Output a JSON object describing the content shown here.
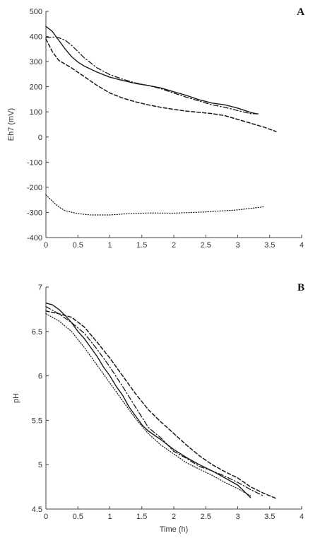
{
  "chart_data": [
    {
      "type": "line",
      "panel_label": "A",
      "xlabel": "",
      "ylabel": "Eh7 (mV)",
      "xlim": [
        0,
        4
      ],
      "ylim": [
        -400,
        500
      ],
      "xticks": [
        "0",
        "0.5",
        "1",
        "1.5",
        "2",
        "2.5",
        "3",
        "3.5",
        "4"
      ],
      "yticks": [
        "-400",
        "-300",
        "-200",
        "-100",
        "0",
        "100",
        "200",
        "300",
        "400",
        "500"
      ],
      "series": [
        {
          "style": "solid",
          "x": [
            0,
            0.1,
            0.2,
            0.3,
            0.4,
            0.5,
            0.6,
            0.8,
            1.0,
            1.2,
            1.4,
            1.6,
            1.8,
            2.0,
            2.2,
            2.4,
            2.6,
            2.8,
            3.0,
            3.2,
            3.3
          ],
          "y": [
            440,
            420,
            385,
            350,
            320,
            298,
            282,
            258,
            238,
            225,
            213,
            205,
            195,
            180,
            165,
            148,
            135,
            128,
            115,
            98,
            92
          ]
        },
        {
          "style": "dashdot",
          "x": [
            0,
            0.1,
            0.2,
            0.3,
            0.4,
            0.5,
            0.6,
            0.8,
            1.0,
            1.2,
            1.4,
            1.6,
            1.8,
            2.0,
            2.2,
            2.4,
            2.6,
            2.8,
            3.0,
            3.2,
            3.35
          ],
          "y": [
            395,
            398,
            395,
            385,
            365,
            340,
            315,
            275,
            248,
            230,
            215,
            205,
            192,
            175,
            158,
            143,
            128,
            118,
            105,
            93,
            92
          ]
        },
        {
          "style": "dashed",
          "x": [
            0,
            0.1,
            0.2,
            0.4,
            0.6,
            0.8,
            1.0,
            1.2,
            1.4,
            1.6,
            1.8,
            2.0,
            2.2,
            2.4,
            2.6,
            2.8,
            3.0,
            3.2,
            3.4,
            3.6
          ],
          "y": [
            390,
            340,
            305,
            275,
            240,
            205,
            175,
            155,
            140,
            128,
            118,
            110,
            103,
            98,
            93,
            85,
            70,
            55,
            40,
            22
          ]
        },
        {
          "style": "dotted",
          "x": [
            0,
            0.1,
            0.2,
            0.3,
            0.5,
            0.7,
            1.0,
            1.3,
            1.6,
            2.0,
            2.5,
            3.0,
            3.4
          ],
          "y": [
            -230,
            -255,
            -278,
            -293,
            -305,
            -310,
            -310,
            -305,
            -302,
            -303,
            -298,
            -290,
            -278
          ]
        }
      ]
    },
    {
      "type": "line",
      "panel_label": "B",
      "xlabel": "Time (h)",
      "ylabel": "pH",
      "xlim": [
        0,
        4
      ],
      "ylim": [
        4.5,
        7
      ],
      "xticks": [
        "0",
        "0.5",
        "1",
        "1.5",
        "2",
        "2.5",
        "3",
        "3.5",
        "4"
      ],
      "yticks": [
        "4.5",
        "5",
        "5.5",
        "6",
        "6.5",
        "7"
      ],
      "series": [
        {
          "style": "solid",
          "x": [
            0,
            0.1,
            0.2,
            0.3,
            0.4,
            0.5,
            0.6,
            0.7,
            0.8,
            0.9,
            1.0,
            1.1,
            1.2,
            1.3,
            1.4,
            1.5,
            1.6,
            1.8,
            2.0,
            2.2,
            2.4,
            2.6,
            2.8,
            3.0,
            3.2
          ],
          "y": [
            6.82,
            6.8,
            6.75,
            6.68,
            6.6,
            6.5,
            6.42,
            6.32,
            6.22,
            6.1,
            6.0,
            5.88,
            5.78,
            5.65,
            5.55,
            5.45,
            5.38,
            5.28,
            5.17,
            5.08,
            5.0,
            4.93,
            4.85,
            4.77,
            4.63
          ]
        },
        {
          "style": "dashdot",
          "x": [
            0,
            0.2,
            0.4,
            0.6,
            0.8,
            1.0,
            1.2,
            1.4,
            1.6,
            1.8,
            2.0,
            2.2,
            2.4,
            2.6,
            2.8,
            3.0,
            3.2,
            3.4
          ],
          "y": [
            6.78,
            6.7,
            6.6,
            6.48,
            6.3,
            6.1,
            5.88,
            5.65,
            5.42,
            5.3,
            5.15,
            5.07,
            4.98,
            4.93,
            4.87,
            4.8,
            4.72,
            4.65
          ]
        },
        {
          "style": "dashed",
          "x": [
            0,
            0.2,
            0.4,
            0.6,
            0.8,
            1.0,
            1.2,
            1.4,
            1.6,
            1.8,
            2.0,
            2.2,
            2.4,
            2.6,
            2.8,
            3.0,
            3.2,
            3.4,
            3.6
          ],
          "y": [
            6.73,
            6.7,
            6.66,
            6.55,
            6.38,
            6.2,
            6.0,
            5.8,
            5.62,
            5.48,
            5.35,
            5.22,
            5.1,
            5.0,
            4.92,
            4.85,
            4.75,
            4.68,
            4.62
          ]
        },
        {
          "style": "dotted",
          "x": [
            0,
            0.2,
            0.4,
            0.6,
            0.8,
            1.0,
            1.2,
            1.4,
            1.6,
            1.8,
            2.0,
            2.2,
            2.4,
            2.6,
            2.8,
            3.0,
            3.2
          ],
          "y": [
            6.7,
            6.62,
            6.5,
            6.32,
            6.12,
            5.92,
            5.72,
            5.52,
            5.35,
            5.22,
            5.12,
            5.02,
            4.95,
            4.88,
            4.8,
            4.73,
            4.65
          ]
        }
      ]
    }
  ]
}
